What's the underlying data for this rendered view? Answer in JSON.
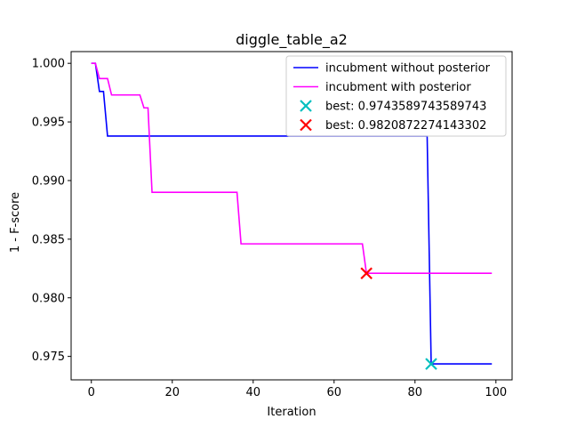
{
  "chart_data": {
    "type": "line",
    "title": "diggle_table_a2",
    "xlabel": "Iteration",
    "ylabel": "1 - F-score",
    "xlim": [
      -5,
      104
    ],
    "ylim": [
      0.973,
      1.001
    ],
    "xticks": [
      0,
      20,
      40,
      60,
      80,
      100
    ],
    "yticks": [
      0.975,
      0.98,
      0.985,
      0.99,
      0.995,
      1.0
    ],
    "xtick_labels": [
      "0",
      "20",
      "40",
      "60",
      "80",
      "100"
    ],
    "ytick_labels": [
      "0.975",
      "0.980",
      "0.985",
      "0.990",
      "0.995",
      "1.000"
    ],
    "grid": false,
    "legend_position": "top-right",
    "series": [
      {
        "name": "incubment without posterior",
        "color": "#0000ff",
        "x": [
          0,
          1,
          2,
          3,
          4,
          83,
          84,
          99
        ],
        "y": [
          1.0,
          1.0,
          0.9976,
          0.9976,
          0.9938,
          0.9938,
          0.97436,
          0.97436
        ]
      },
      {
        "name": "incubment with posterior",
        "color": "#ff00ff",
        "x": [
          0,
          1,
          2,
          4,
          5,
          12,
          13,
          14,
          15,
          36,
          37,
          67,
          68,
          99
        ],
        "y": [
          1.0,
          1.0,
          0.9987,
          0.9987,
          0.9973,
          0.9973,
          0.9962,
          0.9962,
          0.989,
          0.989,
          0.9846,
          0.9846,
          0.98209,
          0.98209
        ]
      }
    ],
    "markers": [
      {
        "name": "best: 0.9743589743589743",
        "x": 84,
        "y": 0.9743589743589743,
        "color": "#00bfbf",
        "symbol": "x"
      },
      {
        "name": "best: 0.9820872274143302",
        "x": 68,
        "y": 0.9820872274143302,
        "color": "#ff0000",
        "symbol": "x"
      }
    ]
  }
}
